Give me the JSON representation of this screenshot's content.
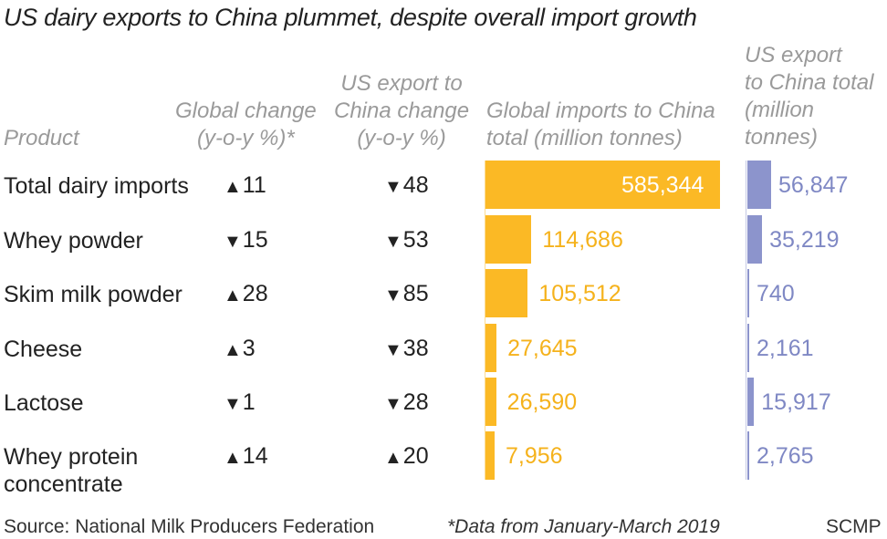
{
  "title": "US dairy exports to China plummet, despite overall import growth",
  "headers": {
    "product": "Product",
    "global_change": "Global change\n(y-o-y %)*",
    "us_change": "US export to\nChina change\n(y-o-y %)",
    "global_imports": "Global imports to China\ntotal (million tonnes)",
    "us_total": "US export\nto China total\n(million\ntonnes)"
  },
  "footer": {
    "source": "Source: National Milk Producers Federation",
    "note": "*Data from January-March 2019",
    "credit": "SCMP"
  },
  "colors": {
    "global_bar": "#fbb925",
    "us_bar": "#8c94cc",
    "global_text": "#f5b21c",
    "us_text": "#7f88c4"
  },
  "icons": {
    "up": "up-triangle-icon",
    "down": "down-triangle-icon"
  },
  "chart_data": {
    "type": "table",
    "columns": [
      "Product",
      "Global change (y-o-y %)*",
      "US export to China change (y-o-y %)",
      "Global imports to China total (million tonnes)",
      "US export to China total (million tonnes)"
    ],
    "rows": [
      {
        "product": "Total dairy imports",
        "global_dir": "up",
        "global_change": "11",
        "us_dir": "down",
        "us_change": "48",
        "global_imports": 585344,
        "global_imports_label": "585,344",
        "us_total": 56847,
        "us_total_label": "56,847"
      },
      {
        "product": "Whey powder",
        "global_dir": "down",
        "global_change": "15",
        "us_dir": "down",
        "us_change": "53",
        "global_imports": 114686,
        "global_imports_label": "114,686",
        "us_total": 35219,
        "us_total_label": "35,219"
      },
      {
        "product": "Skim milk powder",
        "global_dir": "up",
        "global_change": "28",
        "us_dir": "down",
        "us_change": "85",
        "global_imports": 105512,
        "global_imports_label": "105,512",
        "us_total": 740,
        "us_total_label": "740"
      },
      {
        "product": "Cheese",
        "global_dir": "up",
        "global_change": "3",
        "us_dir": "down",
        "us_change": "38",
        "global_imports": 27645,
        "global_imports_label": "27,645",
        "us_total": 2161,
        "us_total_label": "2,161"
      },
      {
        "product": "Lactose",
        "global_dir": "down",
        "global_change": "1",
        "us_dir": "down",
        "us_change": "28",
        "global_imports": 26590,
        "global_imports_label": "26,590",
        "us_total": 15917,
        "us_total_label": "15,917"
      },
      {
        "product": "Whey protein\nconcentrate",
        "global_dir": "up",
        "global_change": "14",
        "us_dir": "up",
        "us_change": "20",
        "global_imports": 7956,
        "global_imports_label": "7,956",
        "us_total": 2765,
        "us_total_label": "2,765"
      }
    ]
  }
}
